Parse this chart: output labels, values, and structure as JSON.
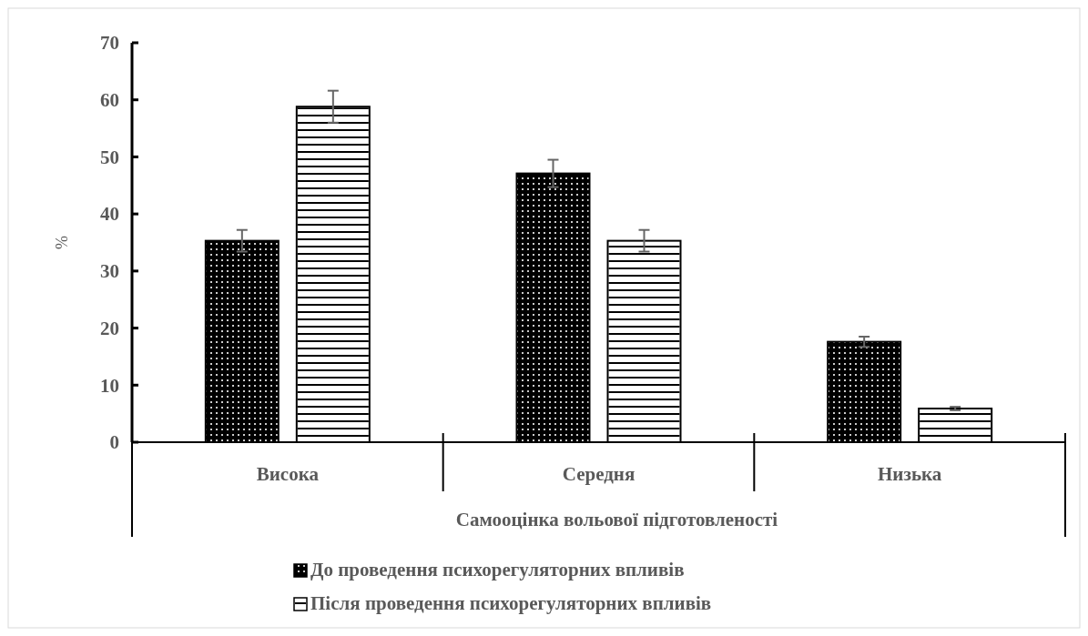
{
  "chart_data": {
    "type": "bar",
    "xlabel": "Самооцінка вольової  підготовленості",
    "ylabel": "%",
    "categories": [
      "Висока",
      "Середня",
      "Низька"
    ],
    "series": [
      {
        "name": "До проведення психорегуляторних впливів",
        "color": "#000000",
        "values": [
          35.3,
          47.1,
          17.6
        ],
        "errors": [
          1.9,
          2.4,
          0.9
        ]
      },
      {
        "name": "Після проведення психорегуляторних впливів",
        "color": "#ffffff",
        "values": [
          58.8,
          35.3,
          5.9
        ],
        "errors": [
          2.8,
          1.9,
          0.3
        ]
      }
    ],
    "ylim": [
      0,
      70
    ],
    "yticks": [
      0,
      10,
      20,
      30,
      40,
      50,
      60,
      70
    ],
    "grid": false,
    "legend": "bottom"
  }
}
